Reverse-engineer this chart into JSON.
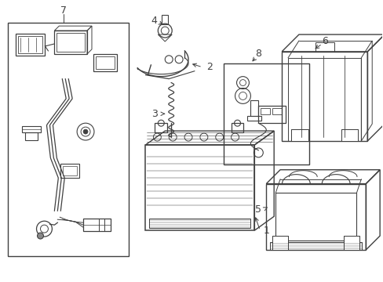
{
  "background_color": "#ffffff",
  "line_color": "#404040",
  "label_color": "#000000",
  "fig_width": 4.89,
  "fig_height": 3.6,
  "dpi": 100
}
